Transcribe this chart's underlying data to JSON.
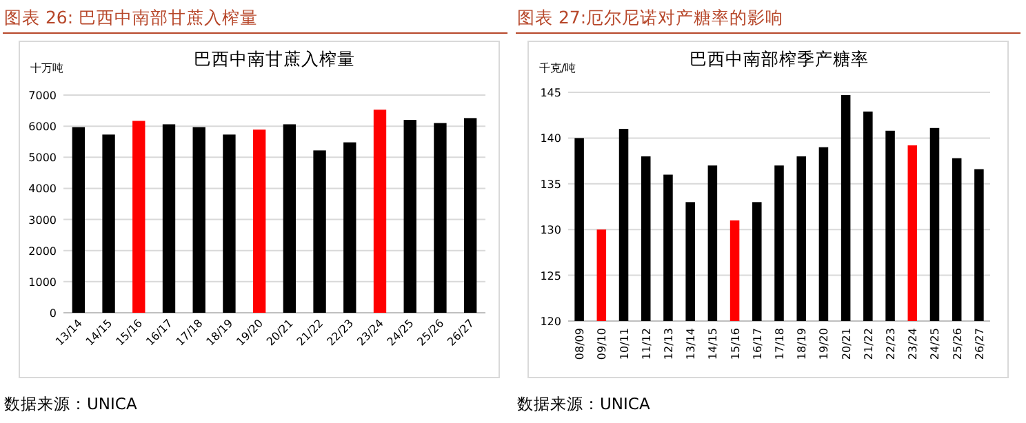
{
  "chart_data": [
    {
      "type": "bar",
      "title": "图表 26: 巴西中南部甘蔗入榨量",
      "subtitle": "巴西中南甘蔗入榨量",
      "ylabel": "十万吨",
      "categories": [
        "13/14",
        "14/15",
        "15/16",
        "16/17",
        "17/18",
        "18/19",
        "19/20",
        "20/21",
        "21/22",
        "22/23",
        "23/24",
        "24/25",
        "25/26",
        "26/27"
      ],
      "values": [
        5970,
        5730,
        6170,
        6060,
        5970,
        5730,
        5890,
        6060,
        5220,
        5480,
        6530,
        6200,
        6100,
        6260
      ],
      "colors": [
        "#000000",
        "#000000",
        "#ff0000",
        "#000000",
        "#000000",
        "#000000",
        "#ff0000",
        "#000000",
        "#000000",
        "#000000",
        "#ff0000",
        "#000000",
        "#000000",
        "#000000"
      ],
      "ylim": [
        0,
        7000
      ],
      "yticks": [
        0,
        1000,
        2000,
        3000,
        4000,
        5000,
        6000,
        7000
      ],
      "grid": "y",
      "annotations": [
        "数据来源：UNICA"
      ]
    },
    {
      "type": "bar",
      "title": "图表 27:厄尔尼诺对产糖率的影响",
      "subtitle": "巴西中南部榨季产糖率",
      "ylabel": "千克/吨",
      "categories": [
        "08/09",
        "09/10",
        "10/11",
        "11/12",
        "12/13",
        "13/14",
        "14/15",
        "15/16",
        "16/17",
        "17/18",
        "18/19",
        "19/20",
        "20/21",
        "21/22",
        "22/23",
        "23/24",
        "24/25",
        "25/26",
        "26/27"
      ],
      "values": [
        140,
        130,
        141,
        138,
        136,
        133,
        137,
        131,
        133,
        137,
        138,
        139,
        144.7,
        142.9,
        140.8,
        139.2,
        141.1,
        137.8,
        136.6
      ],
      "colors": [
        "#000000",
        "#ff0000",
        "#000000",
        "#000000",
        "#000000",
        "#000000",
        "#000000",
        "#ff0000",
        "#000000",
        "#000000",
        "#000000",
        "#000000",
        "#000000",
        "#000000",
        "#000000",
        "#ff0000",
        "#000000",
        "#000000",
        "#000000"
      ],
      "ylim": [
        120,
        145
      ],
      "yticks": [
        120,
        125,
        130,
        135,
        140,
        145
      ],
      "grid": "y",
      "annotations": [
        "数据来源：UNICA"
      ]
    }
  ]
}
